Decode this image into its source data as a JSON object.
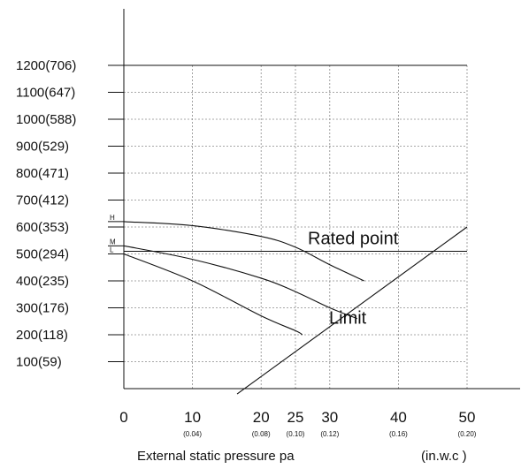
{
  "chart_data": {
    "type": "line",
    "title": "",
    "xlabel": "External static pressure pa",
    "xlabel_unit": "(in.w.c )",
    "ylabel": "",
    "xlim": [
      0,
      50
    ],
    "ylim": [
      0,
      1250
    ],
    "x_ticks": [
      {
        "value": 0,
        "label": "0",
        "sub": ""
      },
      {
        "value": 10,
        "label": "10",
        "sub": "(0.04)"
      },
      {
        "value": 20,
        "label": "20",
        "sub": "(0.08)"
      },
      {
        "value": 25,
        "label": "25",
        "sub": "(0.10)"
      },
      {
        "value": 30,
        "label": "30",
        "sub": "(0.12)"
      },
      {
        "value": 40,
        "label": "40",
        "sub": "(0.16)"
      },
      {
        "value": 50,
        "label": "50",
        "sub": "(0.20)"
      }
    ],
    "y_ticks": [
      {
        "value": 100,
        "label": "100(59)"
      },
      {
        "value": 200,
        "label": "200(118)"
      },
      {
        "value": 300,
        "label": "300(176)"
      },
      {
        "value": 400,
        "label": "400(235)"
      },
      {
        "value": 500,
        "label": "500(294)"
      },
      {
        "value": 600,
        "label": "600(353)"
      },
      {
        "value": 700,
        "label": "700(412)"
      },
      {
        "value": 800,
        "label": "800(471)"
      },
      {
        "value": 900,
        "label": "900(529)"
      },
      {
        "value": 1000,
        "label": "1000(588)"
      },
      {
        "value": 1100,
        "label": "1100(647)"
      },
      {
        "value": 1200,
        "label": "1200(706)"
      }
    ],
    "grid": true,
    "series": [
      {
        "name": "H",
        "x": [
          0,
          10,
          20,
          25,
          30,
          35
        ],
        "y": [
          620,
          605,
          565,
          525,
          460,
          400
        ]
      },
      {
        "name": "M",
        "x": [
          0,
          10,
          20,
          25,
          30,
          34
        ],
        "y": [
          530,
          480,
          410,
          360,
          300,
          260
        ]
      },
      {
        "name": "L",
        "x": [
          0,
          10,
          20,
          25,
          26
        ],
        "y": [
          500,
          400,
          270,
          215,
          200
        ]
      }
    ],
    "rated_point_line": {
      "label": "Rated point",
      "y": 510
    },
    "limit_line": {
      "label": "Limit",
      "x": [
        16.5,
        50
      ],
      "y": [
        -20,
        600
      ]
    }
  }
}
